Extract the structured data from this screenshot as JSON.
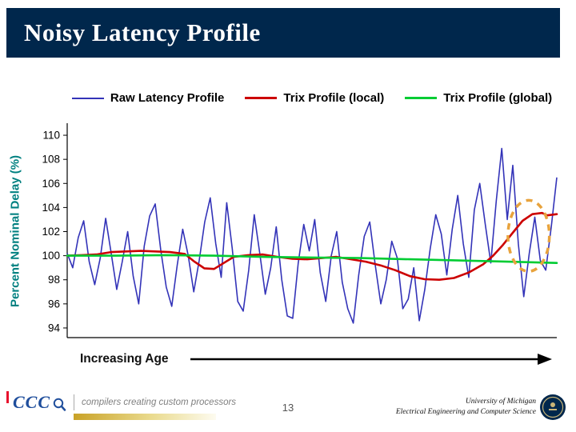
{
  "slide": {
    "title": "Noisy Latency Profile",
    "page_number": "13",
    "xaxis_caption": "Increasing Age",
    "footer": {
      "ccc_acronym": "CCC",
      "ccc_tagline": "compilers creating custom processors",
      "affiliation_line1": "University of Michigan",
      "affiliation_line2": "Electrical Engineering and Computer Science",
      "icons": {
        "logo_icon": "magnifier-icon",
        "seal_icon": "university-of-michigan-seal"
      }
    }
  },
  "colors": {
    "title_bar": "#00274C",
    "raw_series": "#3333B8",
    "trix_local": "#CC0000",
    "trix_global": "#00CC33",
    "axis_label": "#008080",
    "annotation": "#E8A33D",
    "accent_red": "#E8112D",
    "logo_blue": "#1F4E9C"
  },
  "chart_data": {
    "type": "line",
    "title": "",
    "xlabel": "Increasing Age",
    "ylabel": "Percent Nominal Delay (%)",
    "ylim": [
      94,
      110
    ],
    "yticks": [
      94,
      96,
      98,
      100,
      102,
      104,
      106,
      108,
      110
    ],
    "grid": false,
    "legend_position": "top",
    "x_note": "x axis is unlabeled sample/age index; series x given as 0-1 normalized position; raw values evenly spaced",
    "series": [
      {
        "name": "Raw Latency Profile",
        "color": "#3333B8",
        "values": [
          100.2,
          99.0,
          101.5,
          102.9,
          99.5,
          97.6,
          99.8,
          103.1,
          100.2,
          97.2,
          99.5,
          102.0,
          98.3,
          96.0,
          100.8,
          103.3,
          104.3,
          100.5,
          97.4,
          95.8,
          99.2,
          102.2,
          100.0,
          97.0,
          99.6,
          102.8,
          104.8,
          101.0,
          98.2,
          104.4,
          100.6,
          96.2,
          95.4,
          98.8,
          103.4,
          100.2,
          96.8,
          99.0,
          102.4,
          98.0,
          95.0,
          94.8,
          99.4,
          102.6,
          100.4,
          103.0,
          98.6,
          96.2,
          100.0,
          102.0,
          97.8,
          95.6,
          94.4,
          98.4,
          101.6,
          102.8,
          99.2,
          96.0,
          98.0,
          101.2,
          99.8,
          95.6,
          96.4,
          99.0,
          94.6,
          97.2,
          100.6,
          103.4,
          101.8,
          98.4,
          102.2,
          105.0,
          101.0,
          98.2,
          103.8,
          106.0,
          102.6,
          99.4,
          104.6,
          108.9,
          103.0,
          107.5,
          101.0,
          96.6,
          100.2,
          103.2,
          99.6,
          98.8,
          102.4,
          106.5
        ]
      },
      {
        "name": "Trix Profile (local)",
        "color": "#CC0000",
        "points": [
          [
            0.0,
            100.0
          ],
          [
            0.03,
            100.05
          ],
          [
            0.06,
            100.1
          ],
          [
            0.09,
            100.3
          ],
          [
            0.12,
            100.35
          ],
          [
            0.15,
            100.4
          ],
          [
            0.18,
            100.35
          ],
          [
            0.21,
            100.3
          ],
          [
            0.24,
            100.15
          ],
          [
            0.26,
            99.5
          ],
          [
            0.28,
            98.95
          ],
          [
            0.3,
            98.9
          ],
          [
            0.32,
            99.4
          ],
          [
            0.34,
            99.9
          ],
          [
            0.37,
            100.05
          ],
          [
            0.4,
            100.1
          ],
          [
            0.43,
            99.9
          ],
          [
            0.46,
            99.75
          ],
          [
            0.49,
            99.7
          ],
          [
            0.52,
            99.8
          ],
          [
            0.55,
            99.9
          ],
          [
            0.58,
            99.7
          ],
          [
            0.61,
            99.5
          ],
          [
            0.64,
            99.2
          ],
          [
            0.67,
            98.8
          ],
          [
            0.7,
            98.3
          ],
          [
            0.73,
            98.05
          ],
          [
            0.76,
            98.0
          ],
          [
            0.79,
            98.15
          ],
          [
            0.82,
            98.6
          ],
          [
            0.85,
            99.3
          ],
          [
            0.87,
            100.0
          ],
          [
            0.89,
            100.9
          ],
          [
            0.91,
            101.9
          ],
          [
            0.93,
            102.9
          ],
          [
            0.95,
            103.45
          ],
          [
            0.97,
            103.55
          ],
          [
            0.98,
            103.35
          ],
          [
            1.0,
            103.45
          ]
        ]
      },
      {
        "name": "Trix Profile (global)",
        "color": "#00CC33",
        "points": [
          [
            0.0,
            100.0
          ],
          [
            0.1,
            100.0
          ],
          [
            0.2,
            100.05
          ],
          [
            0.3,
            100.0
          ],
          [
            0.4,
            99.9
          ],
          [
            0.5,
            99.85
          ],
          [
            0.6,
            99.8
          ],
          [
            0.7,
            99.7
          ],
          [
            0.8,
            99.6
          ],
          [
            0.9,
            99.5
          ],
          [
            1.0,
            99.4
          ]
        ]
      }
    ],
    "annotation": {
      "type": "dashed-ellipse",
      "label": "highlight of rising latency region",
      "color": "#E8A33D",
      "x_range": [
        0.91,
        0.975
      ],
      "y_range": [
        98.7,
        104.6
      ]
    }
  }
}
